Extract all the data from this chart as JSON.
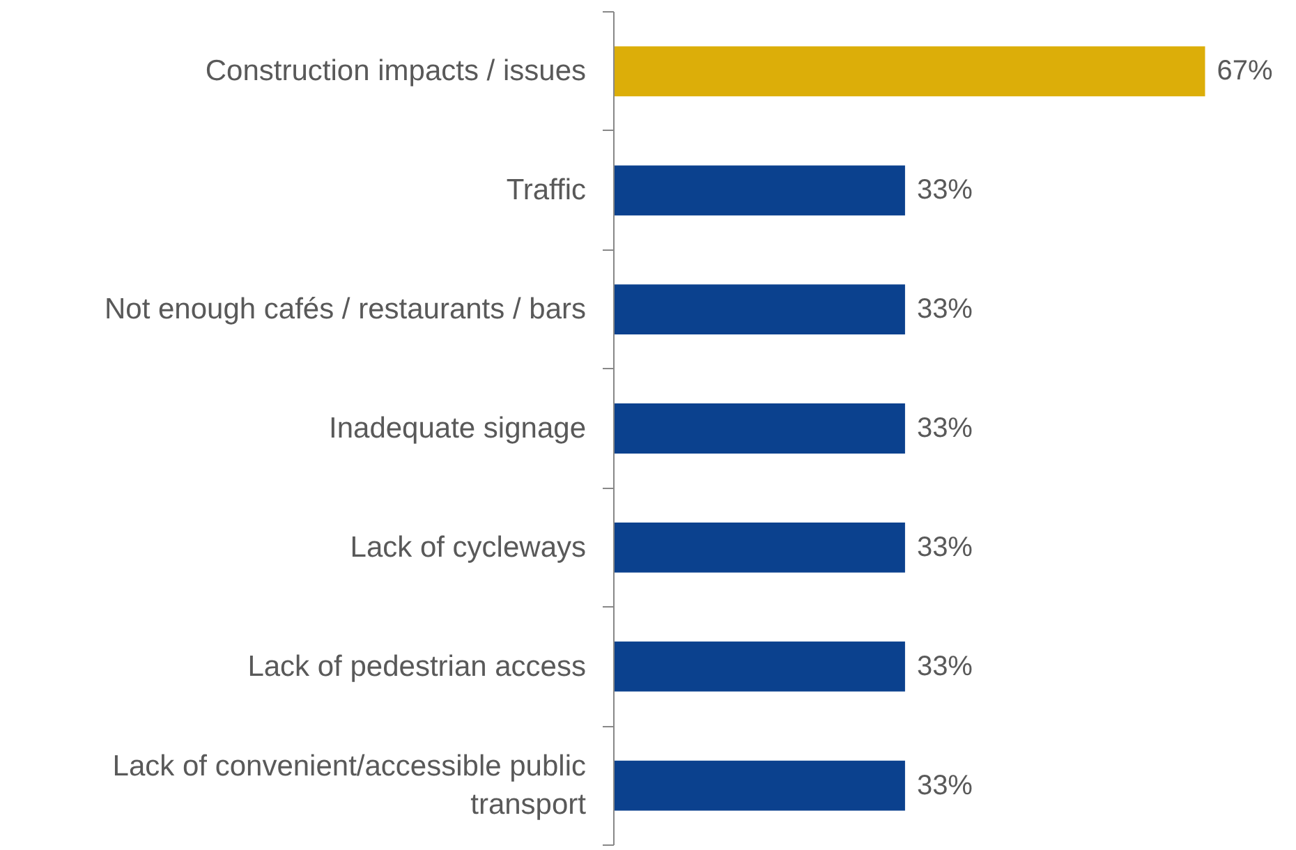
{
  "chart_data": {
    "type": "bar",
    "orientation": "horizontal",
    "categories": [
      "Construction impacts / issues",
      "Traffic",
      "Not enough cafés / restaurants / bars",
      "Inadequate signage",
      "Lack of cycleways",
      "Lack of pedestrian access",
      "Lack of convenient/accessible public transport"
    ],
    "values": [
      67,
      33,
      33,
      33,
      33,
      33,
      33
    ],
    "value_labels": [
      "67%",
      "33%",
      "33%",
      "33%",
      "33%",
      "33%",
      "33%"
    ],
    "colors": [
      "#dcae09",
      "#0b418e",
      "#0b418e",
      "#0b418e",
      "#0b418e",
      "#0b418e",
      "#0b418e"
    ],
    "grid": false
  }
}
